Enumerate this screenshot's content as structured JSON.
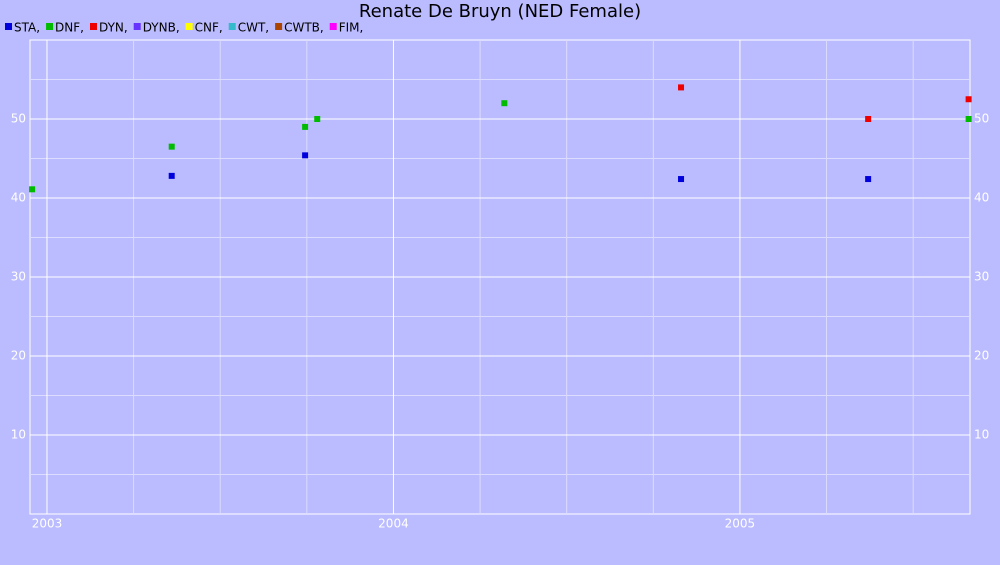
{
  "chart_data": {
    "type": "line",
    "title": "Renate De Bruyn (NED Female)",
    "xlim": [
      2002.951,
      2005.664
    ],
    "ylim": [
      0,
      60
    ],
    "xticks": [
      2003,
      2004,
      2005
    ],
    "xminorticks": [
      2003.25,
      2003.5,
      2003.75,
      2004.25,
      2004.5,
      2004.75,
      2005.25,
      2005.5
    ],
    "yticks": [
      10,
      20,
      30,
      40,
      50
    ],
    "yminorticks": [
      5,
      15,
      25,
      35,
      45,
      55
    ],
    "grid": true,
    "series": [
      {
        "name": "STA,",
        "color": "#0000dd",
        "x": [
          2003.36,
          2003.745,
          2004.83,
          2005.37
        ],
        "values": [
          42.8,
          45.4,
          42.4,
          42.4
        ]
      },
      {
        "name": "DNF,",
        "color": "#00bb00",
        "x": [
          2002.957,
          2003.36,
          2003.745,
          2003.78,
          2004.32,
          2005.66
        ],
        "values": [
          41.1,
          46.5,
          49,
          50,
          52,
          50
        ]
      },
      {
        "name": "DYN,",
        "color": "#ee0000",
        "x": [
          2004.83,
          2005.37,
          2005.66
        ],
        "values": [
          54,
          50,
          52.5
        ]
      },
      {
        "name": "DYNB,",
        "color": "#6633ff",
        "x": [],
        "values": []
      },
      {
        "name": "CNF,",
        "color": "#ffff00",
        "x": [],
        "values": []
      },
      {
        "name": "CWT,",
        "color": "#33bbcc",
        "x": [],
        "values": []
      },
      {
        "name": "CWTB,",
        "color": "#aa4400",
        "x": [],
        "values": []
      },
      {
        "name": "FIM,",
        "color": "#ff00ff",
        "x": [],
        "values": []
      }
    ]
  }
}
